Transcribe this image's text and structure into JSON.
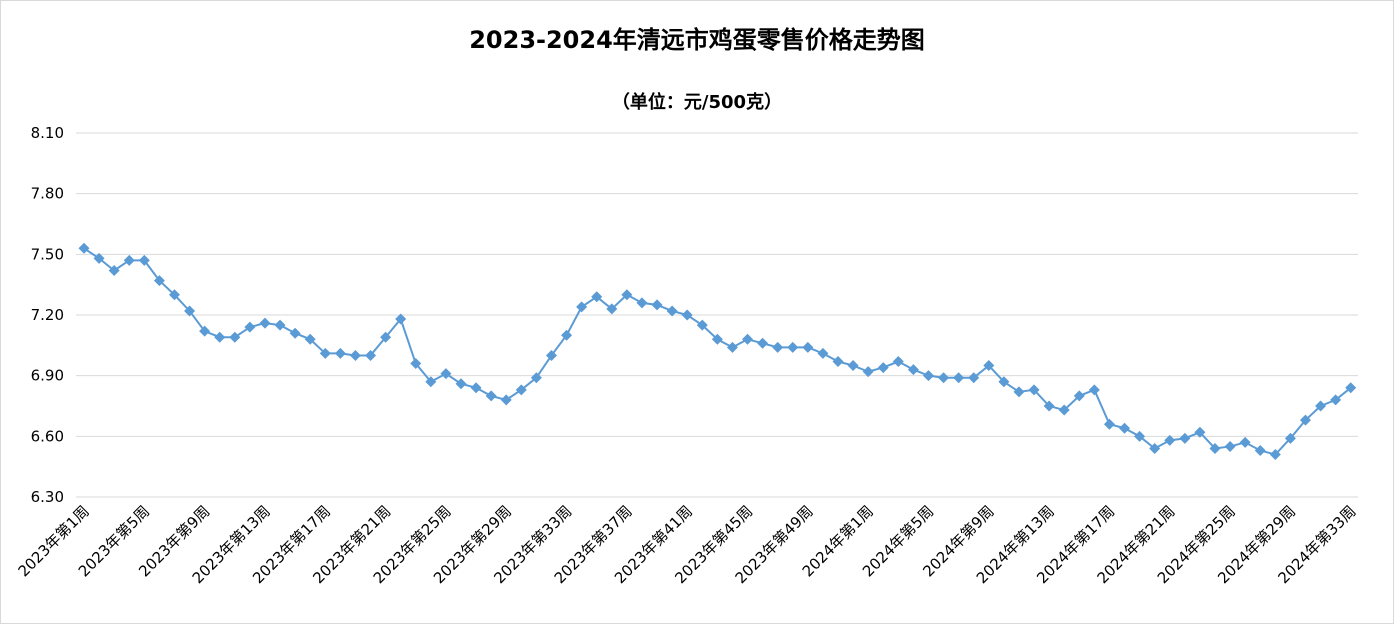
{
  "chart_data": {
    "type": "line",
    "title": "2023-2024年清远市鸡蛋零售价格走势图",
    "subtitle": "（单位：元/500克）",
    "xlabel": "",
    "ylabel": "",
    "ylim": [
      6.3,
      8.1
    ],
    "yticks": [
      "6.30",
      "6.60",
      "6.90",
      "7.20",
      "7.50",
      "7.80",
      "8.10"
    ],
    "grid": true,
    "legend": "none",
    "series_color": "#5B9BD5",
    "categories": [
      "2023年第1周",
      "2023年第2周",
      "2023年第3周",
      "2023年第4周",
      "2023年第5周",
      "2023年第6周",
      "2023年第7周",
      "2023年第8周",
      "2023年第9周",
      "2023年第10周",
      "2023年第11周",
      "2023年第12周",
      "2023年第13周",
      "2023年第14周",
      "2023年第15周",
      "2023年第16周",
      "2023年第17周",
      "2023年第18周",
      "2023年第19周",
      "2023年第20周",
      "2023年第21周",
      "2023年第22周",
      "2023年第23周",
      "2023年第24周",
      "2023年第25周",
      "2023年第26周",
      "2023年第27周",
      "2023年第28周",
      "2023年第29周",
      "2023年第30周",
      "2023年第31周",
      "2023年第32周",
      "2023年第33周",
      "2023年第34周",
      "2023年第35周",
      "2023年第36周",
      "2023年第37周",
      "2023年第38周",
      "2023年第39周",
      "2023年第40周",
      "2023年第41周",
      "2023年第42周",
      "2023年第43周",
      "2023年第44周",
      "2023年第45周",
      "2023年第46周",
      "2023年第47周",
      "2023年第48周",
      "2023年第49周",
      "2023年第50周",
      "2023年第51周",
      "2023年第52周",
      "2024年第1周",
      "2024年第2周",
      "2024年第3周",
      "2024年第4周",
      "2024年第5周",
      "2024年第6周",
      "2024年第7周",
      "2024年第8周",
      "2024年第9周",
      "2024年第10周",
      "2024年第11周",
      "2024年第12周",
      "2024年第13周",
      "2024年第14周",
      "2024年第15周",
      "2024年第16周",
      "2024年第17周",
      "2024年第18周",
      "2024年第19周",
      "2024年第20周",
      "2024年第21周",
      "2024年第22周",
      "2024年第23周",
      "2024年第24周",
      "2024年第25周",
      "2024年第26周",
      "2024年第27周",
      "2024年第28周",
      "2024年第29周",
      "2024年第30周",
      "2024年第31周",
      "2024年第32周",
      "2024年第33周"
    ],
    "x_tick_labels_shown": [
      "2023年第1周",
      "2023年第5周",
      "2023年第9周",
      "2023年第13周",
      "2023年第17周",
      "2023年第21周",
      "2023年第25周",
      "2023年第29周",
      "2023年第33周",
      "2023年第37周",
      "2023年第41周",
      "2023年第45周",
      "2023年第49周",
      "2024年第1周",
      "2024年第5周",
      "2024年第9周",
      "2024年第13周",
      "2024年第17周",
      "2024年第21周",
      "2024年第25周",
      "2024年第29周",
      "2024年第33周"
    ],
    "values": [
      7.53,
      7.48,
      7.42,
      7.47,
      7.47,
      7.37,
      7.3,
      7.22,
      7.12,
      7.09,
      7.09,
      7.14,
      7.16,
      7.15,
      7.11,
      7.08,
      7.01,
      7.01,
      7.0,
      7.0,
      7.09,
      7.18,
      6.96,
      6.87,
      6.91,
      6.86,
      6.84,
      6.8,
      6.78,
      6.83,
      6.89,
      7.0,
      7.1,
      7.24,
      7.29,
      7.23,
      7.3,
      7.26,
      7.25,
      7.22,
      7.2,
      7.15,
      7.08,
      7.04,
      7.08,
      7.06,
      7.04,
      7.04,
      7.04,
      7.01,
      6.97,
      6.95,
      6.92,
      6.94,
      6.97,
      6.93,
      6.9,
      6.89,
      6.89,
      6.89,
      6.95,
      6.87,
      6.82,
      6.83,
      6.75,
      6.73,
      6.8,
      6.83,
      6.66,
      6.64,
      6.6,
      6.54,
      6.58,
      6.59,
      6.62,
      6.54,
      6.55,
      6.57,
      6.53,
      6.51,
      6.59,
      6.68,
      6.75,
      6.78,
      6.84
    ]
  }
}
